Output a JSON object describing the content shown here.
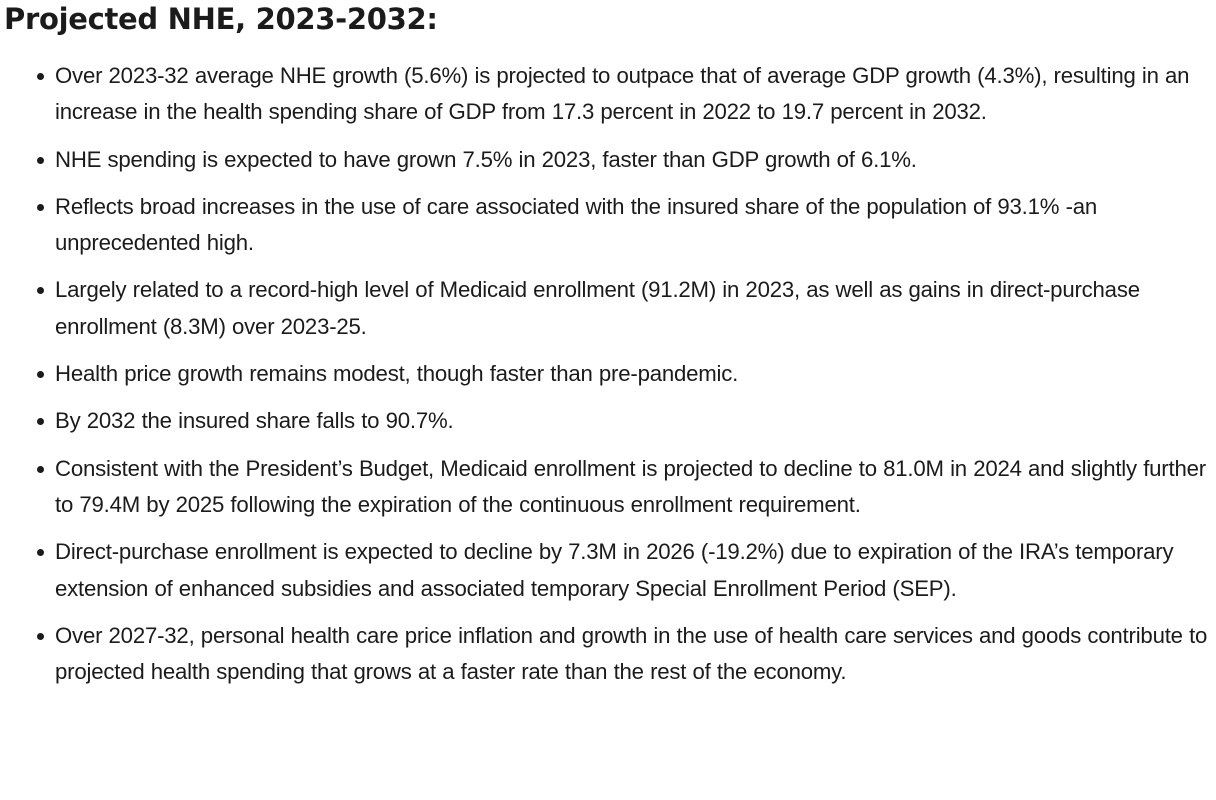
{
  "heading": "Projected NHE, 2023-2032:",
  "bullets": [
    "Over 2023-32 average NHE growth (5.6%) is projected to outpace that of average GDP growth (4.3%), resulting in an increase in the health spending share of GDP from 17.3 percent in 2022 to 19.7 percent in 2032.",
    "NHE spending is expected to have grown 7.5% in 2023, faster than GDP growth of 6.1%.",
    "Reflects broad increases in the use of care associated with the insured share of the population of 93.1% -an unprecedented high.",
    "Largely related to a record-high level of Medicaid enrollment (91.2M) in 2023, as well as gains in direct-purchase enrollment (8.3M) over 2023-25.",
    "Health price growth remains modest, though faster than pre-pandemic.",
    "By 2032 the insured share falls to 90.7%.",
    "Consistent with the President’s Budget, Medicaid enrollment is projected to decline to 81.0M in 2024 and slightly further to 79.4M by 2025 following the expiration of the continuous enrollment requirement.",
    "Direct-purchase enrollment is expected to decline by 7.3M in 2026 (-19.2%) due to expiration of the IRA’s temporary extension of enhanced subsidies and associated temporary Special Enrollment Period (SEP).",
    "Over 2027-32, personal health care price inflation and growth in the use of health care services and goods contribute to projected health spending that grows at a faster rate than the rest of the economy."
  ]
}
